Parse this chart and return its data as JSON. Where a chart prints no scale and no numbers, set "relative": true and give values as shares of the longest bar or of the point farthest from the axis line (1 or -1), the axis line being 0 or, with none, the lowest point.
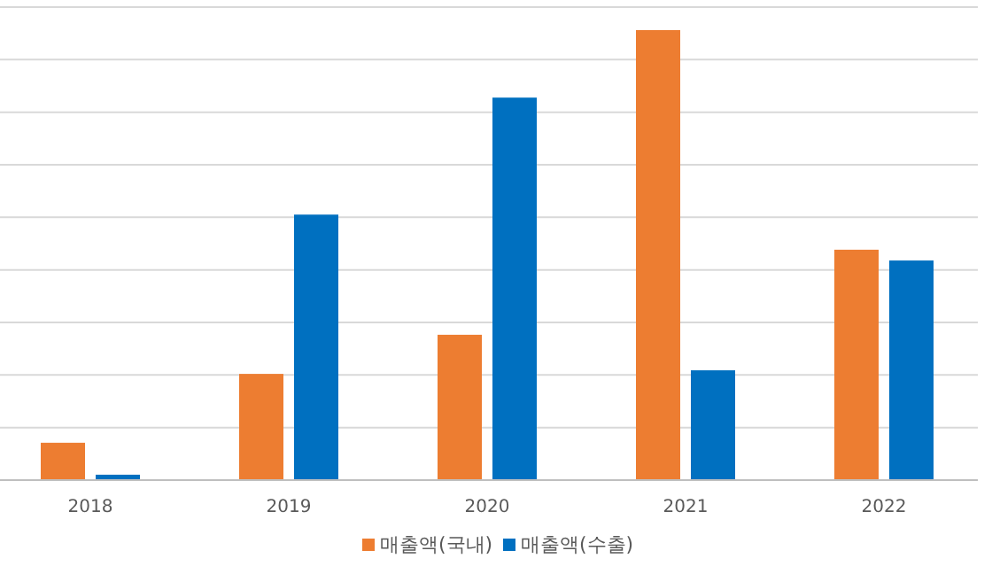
{
  "chart_data": {
    "type": "bar",
    "relative": true,
    "categories": [
      "2018",
      "2019",
      "2020",
      "2021",
      "2022"
    ],
    "series": [
      {
        "name": "매출액(국내)",
        "color": "#ed7d31",
        "values": [
          0.083,
          0.236,
          0.323,
          1,
          0.512
        ]
      },
      {
        "name": "매출액(수출)",
        "color": "#0070c0",
        "values": [
          0.012,
          0.59,
          0.85,
          0.244,
          0.488
        ]
      }
    ],
    "grid": "y",
    "legend": "bottom"
  }
}
